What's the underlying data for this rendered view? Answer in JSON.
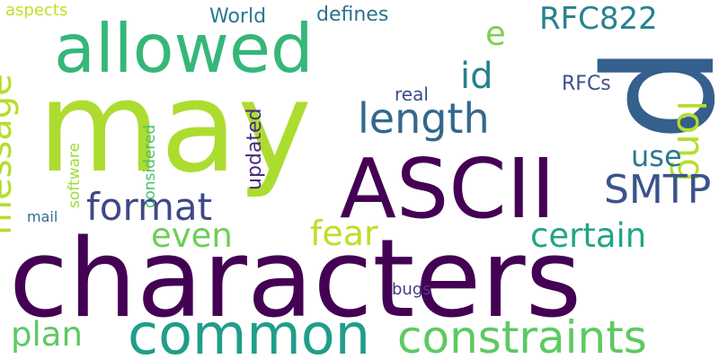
{
  "background": "#ffffff",
  "words": [
    {
      "text": "characters",
      "color": "#440154"
    },
    {
      "text": "may",
      "color": "#addc30"
    },
    {
      "text": "p",
      "color": "#355f8d"
    },
    {
      "text": "ASCII",
      "color": "#440154"
    },
    {
      "text": "allowed",
      "color": "#35b779"
    },
    {
      "text": "common",
      "color": "#1f9e89"
    },
    {
      "text": "constraints",
      "color": "#5ec962"
    },
    {
      "text": "message",
      "color": "#b5de2b"
    },
    {
      "text": "length",
      "color": "#31688e"
    },
    {
      "text": "format",
      "color": "#3e4989"
    },
    {
      "text": "long",
      "color": "#b5de2b"
    },
    {
      "text": "SMTP",
      "color": "#3b528b"
    },
    {
      "text": "certain",
      "color": "#21a585"
    },
    {
      "text": "fear",
      "color": "#bddf26"
    },
    {
      "text": "even",
      "color": "#6ece58"
    },
    {
      "text": "plan",
      "color": "#5ec962"
    },
    {
      "text": "RFC822",
      "color": "#26828e"
    },
    {
      "text": "id",
      "color": "#277f8e"
    },
    {
      "text": "e",
      "color": "#7ad151"
    },
    {
      "text": "use",
      "color": "#2a788e"
    },
    {
      "text": "updated",
      "color": "#472d7b"
    },
    {
      "text": "World",
      "color": "#29788e"
    },
    {
      "text": "defines",
      "color": "#2c728e"
    },
    {
      "text": "RFCs",
      "color": "#3b528b"
    },
    {
      "text": "real",
      "color": "#3e4989"
    },
    {
      "text": "considered",
      "color": "#4ac16d"
    },
    {
      "text": "software",
      "color": "#9fda3a"
    },
    {
      "text": "mail",
      "color": "#2f6c8e"
    },
    {
      "text": "aspects",
      "color": "#c2df23"
    },
    {
      "text": "bugs",
      "color": "#443983"
    }
  ]
}
